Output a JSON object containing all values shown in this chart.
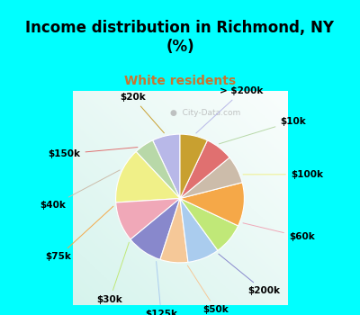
{
  "title": "Income distribution in Richmond, NY\n(%)",
  "subtitle": "White residents",
  "title_color": "#000000",
  "subtitle_color": "#c87530",
  "background_color": "#00ffff",
  "chart_bg_top": "#e0f5ee",
  "chart_bg_bottom": "#cceedd",
  "labels": [
    "> $200k",
    "$10k",
    "$100k",
    "$60k",
    "$200k",
    "$50k",
    "$125k",
    "$30k",
    "$75k",
    "$40k",
    "$150k",
    "$20k"
  ],
  "values": [
    7,
    5,
    14,
    10,
    9,
    7,
    8,
    8,
    11,
    7,
    7,
    7
  ],
  "colors": [
    "#b8b8e8",
    "#b8d8a8",
    "#f0f088",
    "#f0a8b8",
    "#8888cc",
    "#f5c898",
    "#aaccee",
    "#c0e878",
    "#f5a848",
    "#ccbcaa",
    "#e07070",
    "#c8a030"
  ],
  "wedge_edge_color": "#ffffff",
  "label_fontsize": 7.5,
  "label_color": "#000000",
  "watermark": "City-Data.com",
  "title_fontsize": 12,
  "subtitle_fontsize": 10
}
